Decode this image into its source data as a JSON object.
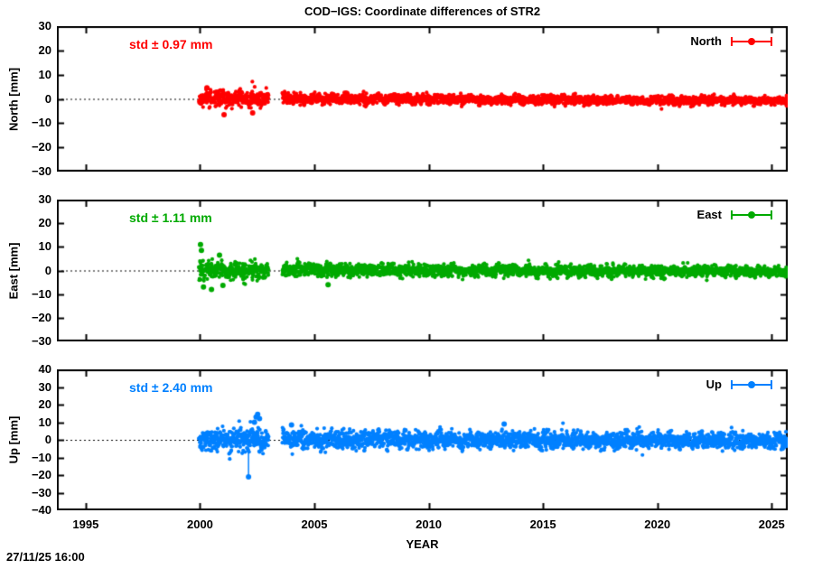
{
  "title": "COD−IGS: Coordinate differences of STR2",
  "timestamp": "27/11/25 16:00",
  "chart_data": {
    "type": "scatter",
    "title": "COD−IGS: Coordinate differences of STR2",
    "xlabel": "YEAR",
    "xlim": [
      1993.74,
      2025.7
    ],
    "xticks": [
      1995,
      2000,
      2005,
      2010,
      2015,
      2020,
      2025
    ],
    "grid": false,
    "marker": "filled-circle-errorbar",
    "data_span": [
      1999.95,
      2025.67
    ],
    "data_gap": [
      2003.0,
      2003.6
    ],
    "legend_position": "top-right-inside",
    "panels": [
      {
        "name": "North",
        "ylabel": "North [mm]",
        "legend_label": "North",
        "std_label": "std ± 0.97 mm",
        "std_mm": 0.97,
        "color": "#ff0000",
        "ylim": [
          -30,
          30
        ],
        "yticks": [
          30,
          20,
          10,
          0,
          -10,
          -20,
          -30
        ],
        "zero_line": true,
        "gen": {
          "seed": 11,
          "rate": 110,
          "segments": [
            {
              "from": 1999.95,
              "to": 2003.0,
              "mean0": 0.2,
              "mean1": -0.1,
              "sigma0": 1.5,
              "sigma1": 1.4
            },
            {
              "from": 2003.6,
              "to": 2025.67,
              "mean0": 0.1,
              "mean1": -0.8,
              "sigma0": 1.05,
              "sigma1": 0.8
            }
          ],
          "outliers": [
            {
              "x": 2001.05,
              "y": -6.5
            },
            {
              "x": 2002.3,
              "y": -5.8
            },
            {
              "x": 2000.3,
              "y": 4.6
            }
          ]
        }
      },
      {
        "name": "East",
        "ylabel": "East [mm]",
        "legend_label": "East",
        "std_label": "std ± 1.11 mm",
        "std_mm": 1.11,
        "color": "#00aa00",
        "ylim": [
          -30,
          30
        ],
        "yticks": [
          30,
          20,
          10,
          0,
          -10,
          -20,
          -30
        ],
        "zero_line": true,
        "gen": {
          "seed": 22,
          "rate": 110,
          "segments": [
            {
              "from": 1999.95,
              "to": 2003.0,
              "mean0": 0.0,
              "mean1": 0.0,
              "sigma0": 2.0,
              "sigma1": 1.6
            },
            {
              "from": 2003.6,
              "to": 2025.67,
              "mean0": 0.3,
              "mean1": -0.5,
              "sigma0": 1.4,
              "sigma1": 1.05
            }
          ],
          "outliers": [
            {
              "x": 2000.02,
              "y": 11
            },
            {
              "x": 2000.06,
              "y": 8.5
            },
            {
              "x": 2000.15,
              "y": -7
            },
            {
              "x": 2000.5,
              "y": -8
            },
            {
              "x": 2000.85,
              "y": 6.5
            },
            {
              "x": 2001.0,
              "y": -6.3
            },
            {
              "x": 2005.6,
              "y": -6
            }
          ]
        }
      },
      {
        "name": "Up",
        "ylabel": "Up [mm]",
        "legend_label": "Up",
        "std_label": "std ± 2.40 mm",
        "std_mm": 2.4,
        "color": "#0080ff",
        "ylim": [
          -40,
          40
        ],
        "yticks": [
          40,
          30,
          20,
          10,
          0,
          -10,
          -20,
          -30,
          -40
        ],
        "zero_line": true,
        "gen": {
          "seed": 33,
          "rate": 110,
          "segments": [
            {
              "from": 1999.95,
              "to": 2003.0,
              "mean0": 0.0,
              "mean1": 0.2,
              "sigma0": 3.0,
              "sigma1": 3.3
            },
            {
              "from": 2003.6,
              "to": 2025.67,
              "mean0": 0.2,
              "mean1": -0.5,
              "sigma0": 2.6,
              "sigma1": 2.1
            }
          ],
          "outliers": [
            {
              "x": 2002.12,
              "y": -21,
              "bar_from": -4
            },
            {
              "x": 2002.45,
              "y": 13
            },
            {
              "x": 2002.52,
              "y": 14.5
            },
            {
              "x": 2002.6,
              "y": 12
            },
            {
              "x": 2002.38,
              "y": 10
            },
            {
              "x": 2004.0,
              "y": 8.5
            },
            {
              "x": 2013.3,
              "y": 9
            }
          ]
        }
      }
    ]
  }
}
